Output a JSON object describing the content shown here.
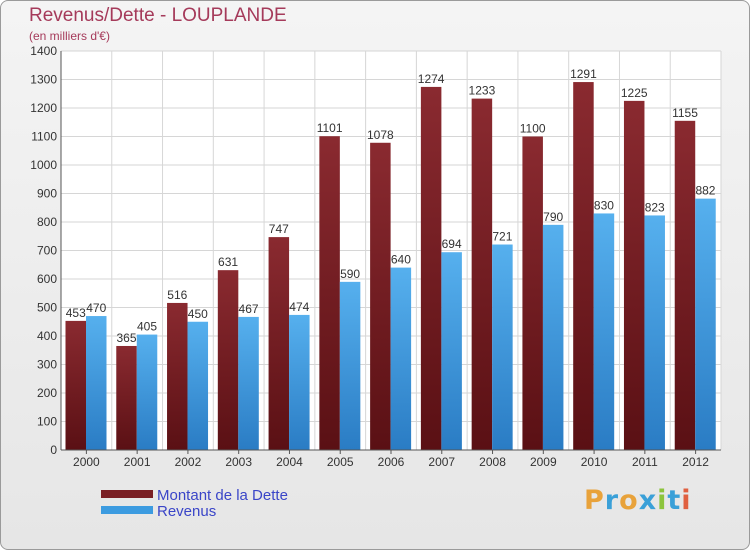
{
  "chart_data": {
    "type": "bar",
    "title": "Revenus/Dette - LOUPLANDE",
    "subtitle": "(en milliers d'€)",
    "categories": [
      "2000",
      "2001",
      "2002",
      "2003",
      "2004",
      "2005",
      "2006",
      "2007",
      "2008",
      "2009",
      "2010",
      "2011",
      "2012"
    ],
    "series": [
      {
        "name": "Montant de la Dette",
        "color": "#7a1f24",
        "values": [
          453,
          365,
          516,
          631,
          747,
          1101,
          1078,
          1274,
          1233,
          1100,
          1291,
          1225,
          1155
        ]
      },
      {
        "name": "Revenus",
        "color": "#3c9be0",
        "values": [
          470,
          405,
          450,
          467,
          474,
          590,
          640,
          694,
          721,
          790,
          830,
          823,
          882
        ]
      }
    ],
    "ylim": [
      0,
      1400
    ],
    "yticks": [
      0,
      100,
      200,
      300,
      400,
      500,
      600,
      700,
      800,
      900,
      1000,
      1100,
      1200,
      1300,
      1400
    ],
    "xlabel": "",
    "ylabel": "",
    "grid": true,
    "legend_position": "bottom-left"
  },
  "logo": {
    "text": "Proxiti",
    "letters": [
      {
        "char": "P",
        "color": "#e8a23a"
      },
      {
        "char": "r",
        "color": "#3aa0d8"
      },
      {
        "char": "o",
        "color": "#e8a23a"
      },
      {
        "char": "x",
        "color": "#3aa0d8"
      },
      {
        "char": "i",
        "color": "#8cc43c"
      },
      {
        "char": "t",
        "color": "#3aa0d8"
      },
      {
        "char": "i",
        "color": "#e06040"
      }
    ]
  }
}
